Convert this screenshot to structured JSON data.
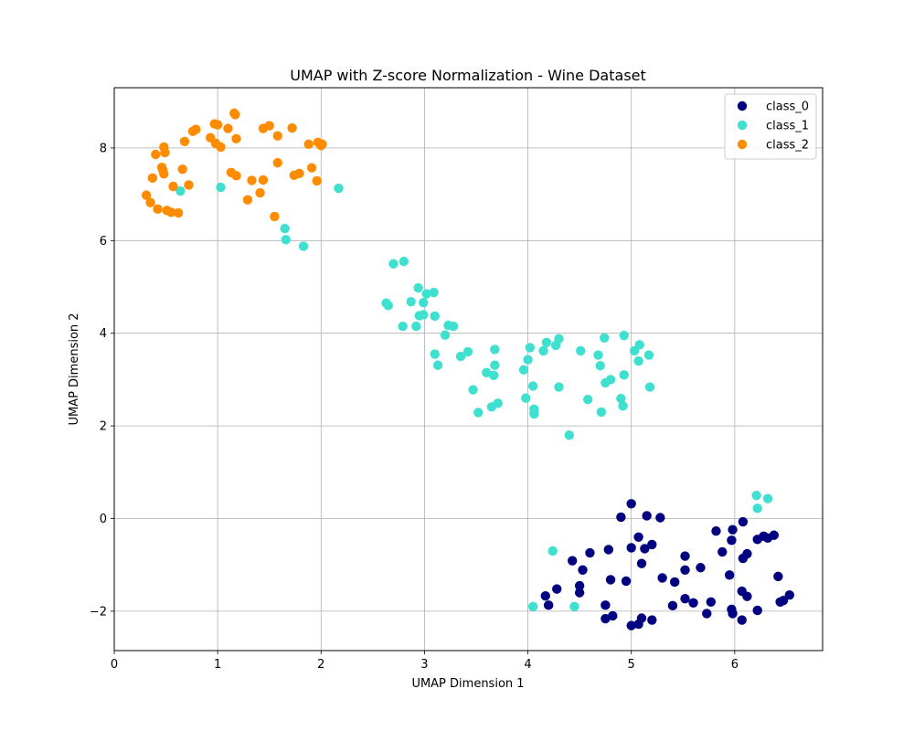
{
  "chart_data": {
    "type": "scatter",
    "title": "UMAP with Z-score Normalization - Wine Dataset",
    "xlabel": "UMAP Dimension 1",
    "ylabel": "UMAP Dimension 2",
    "xlim": [
      0,
      6.85
    ],
    "ylim": [
      -2.85,
      9.3
    ],
    "xticks": [
      0,
      1,
      2,
      3,
      4,
      5,
      6
    ],
    "yticks": [
      -2,
      0,
      2,
      4,
      6,
      8
    ],
    "grid": true,
    "legend_position": "top-right",
    "series": [
      {
        "name": "class_0",
        "color": "#000080",
        "points": [
          [
            5.0,
            0.32
          ],
          [
            4.9,
            0.03
          ],
          [
            5.15,
            0.06
          ],
          [
            5.28,
            0.02
          ],
          [
            6.08,
            -0.07
          ],
          [
            5.82,
            -0.27
          ],
          [
            5.98,
            -0.24
          ],
          [
            6.28,
            -0.38
          ],
          [
            6.38,
            -0.36
          ],
          [
            6.22,
            -0.45
          ],
          [
            6.32,
            -0.42
          ],
          [
            5.97,
            -0.47
          ],
          [
            5.07,
            -0.4
          ],
          [
            5.2,
            -0.56
          ],
          [
            5.13,
            -0.65
          ],
          [
            5.0,
            -0.63
          ],
          [
            4.78,
            -0.67
          ],
          [
            4.6,
            -0.74
          ],
          [
            5.88,
            -0.72
          ],
          [
            6.12,
            -0.76
          ],
          [
            6.08,
            -0.86
          ],
          [
            4.43,
            -0.91
          ],
          [
            5.52,
            -0.81
          ],
          [
            5.1,
            -0.97
          ],
          [
            4.53,
            -1.11
          ],
          [
            5.52,
            -1.11
          ],
          [
            5.67,
            -1.06
          ],
          [
            6.42,
            -1.25
          ],
          [
            5.95,
            -1.22
          ],
          [
            5.3,
            -1.28
          ],
          [
            4.8,
            -1.32
          ],
          [
            4.95,
            -1.35
          ],
          [
            5.42,
            -1.37
          ],
          [
            4.5,
            -1.45
          ],
          [
            4.28,
            -1.52
          ],
          [
            4.5,
            -1.6
          ],
          [
            6.07,
            -1.57
          ],
          [
            6.12,
            -1.68
          ],
          [
            6.53,
            -1.65
          ],
          [
            4.17,
            -1.67
          ],
          [
            5.52,
            -1.73
          ],
          [
            5.77,
            -1.8
          ],
          [
            6.47,
            -1.77
          ],
          [
            6.44,
            -1.8
          ],
          [
            5.6,
            -1.82
          ],
          [
            4.2,
            -1.87
          ],
          [
            4.75,
            -1.87
          ],
          [
            5.4,
            -1.88
          ],
          [
            5.97,
            -1.96
          ],
          [
            6.22,
            -1.98
          ],
          [
            5.73,
            -2.05
          ],
          [
            5.98,
            -2.05
          ],
          [
            4.82,
            -2.1
          ],
          [
            5.1,
            -2.15
          ],
          [
            4.75,
            -2.16
          ],
          [
            5.2,
            -2.19
          ],
          [
            6.07,
            -2.19
          ],
          [
            5.07,
            -2.28
          ],
          [
            5.0,
            -2.31
          ]
        ]
      },
      {
        "name": "class_1",
        "color": "#40E0D0",
        "points": [
          [
            0.64,
            7.07
          ],
          [
            1.03,
            7.15
          ],
          [
            2.17,
            7.13
          ],
          [
            1.65,
            6.26
          ],
          [
            1.66,
            6.02
          ],
          [
            1.83,
            5.88
          ],
          [
            2.7,
            5.5
          ],
          [
            2.8,
            5.55
          ],
          [
            2.94,
            4.98
          ],
          [
            3.02,
            4.85
          ],
          [
            3.09,
            4.88
          ],
          [
            2.63,
            4.65
          ],
          [
            2.65,
            4.6
          ],
          [
            2.87,
            4.68
          ],
          [
            2.99,
            4.66
          ],
          [
            2.95,
            4.38
          ],
          [
            2.99,
            4.4
          ],
          [
            3.1,
            4.37
          ],
          [
            2.79,
            4.15
          ],
          [
            2.92,
            4.15
          ],
          [
            3.23,
            4.17
          ],
          [
            3.28,
            4.15
          ],
          [
            3.2,
            3.96
          ],
          [
            4.3,
            3.88
          ],
          [
            4.18,
            3.8
          ],
          [
            4.27,
            3.74
          ],
          [
            4.02,
            3.69
          ],
          [
            3.68,
            3.65
          ],
          [
            4.15,
            3.62
          ],
          [
            4.51,
            3.62
          ],
          [
            4.74,
            3.9
          ],
          [
            4.93,
            3.95
          ],
          [
            5.08,
            3.75
          ],
          [
            5.03,
            3.62
          ],
          [
            5.17,
            3.53
          ],
          [
            4.68,
            3.53
          ],
          [
            3.42,
            3.6
          ],
          [
            3.1,
            3.55
          ],
          [
            3.35,
            3.5
          ],
          [
            4.0,
            3.43
          ],
          [
            5.07,
            3.4
          ],
          [
            3.13,
            3.31
          ],
          [
            3.68,
            3.31
          ],
          [
            4.7,
            3.3
          ],
          [
            3.6,
            3.15
          ],
          [
            3.96,
            3.21
          ],
          [
            3.67,
            3.09
          ],
          [
            4.93,
            3.1
          ],
          [
            4.8,
            3.0
          ],
          [
            4.75,
            2.93
          ],
          [
            4.05,
            2.86
          ],
          [
            4.3,
            2.84
          ],
          [
            5.18,
            2.84
          ],
          [
            3.47,
            2.78
          ],
          [
            3.98,
            2.6
          ],
          [
            4.58,
            2.57
          ],
          [
            4.9,
            2.59
          ],
          [
            3.71,
            2.49
          ],
          [
            4.92,
            2.43
          ],
          [
            3.65,
            2.41
          ],
          [
            4.06,
            2.36
          ],
          [
            4.06,
            2.26
          ],
          [
            4.71,
            2.3
          ],
          [
            3.52,
            2.29
          ],
          [
            4.4,
            1.8
          ],
          [
            6.21,
            0.5
          ],
          [
            6.32,
            0.43
          ],
          [
            6.22,
            0.22
          ],
          [
            4.24,
            -0.7
          ],
          [
            4.05,
            -1.9
          ],
          [
            4.45,
            -1.9
          ]
        ]
      },
      {
        "name": "class_2",
        "color": "#FF8C00",
        "points": [
          [
            1.16,
            8.75
          ],
          [
            1.17,
            8.72
          ],
          [
            0.97,
            8.52
          ],
          [
            1.0,
            8.5
          ],
          [
            1.5,
            8.48
          ],
          [
            1.44,
            8.42
          ],
          [
            1.1,
            8.42
          ],
          [
            1.72,
            8.43
          ],
          [
            0.79,
            8.4
          ],
          [
            0.76,
            8.36
          ],
          [
            0.93,
            8.22
          ],
          [
            1.18,
            8.2
          ],
          [
            1.58,
            8.26
          ],
          [
            0.68,
            8.14
          ],
          [
            0.98,
            8.1
          ],
          [
            1.03,
            8.02
          ],
          [
            1.88,
            8.08
          ],
          [
            1.97,
            8.12
          ],
          [
            2.0,
            8.05
          ],
          [
            2.01,
            8.08
          ],
          [
            0.48,
            8.02
          ],
          [
            0.49,
            7.9
          ],
          [
            0.4,
            7.86
          ],
          [
            1.58,
            7.68
          ],
          [
            0.46,
            7.58
          ],
          [
            0.47,
            7.52
          ],
          [
            0.66,
            7.54
          ],
          [
            1.91,
            7.57
          ],
          [
            1.13,
            7.47
          ],
          [
            1.18,
            7.4
          ],
          [
            1.79,
            7.45
          ],
          [
            1.74,
            7.41
          ],
          [
            0.48,
            7.44
          ],
          [
            0.37,
            7.35
          ],
          [
            1.33,
            7.3
          ],
          [
            1.44,
            7.31
          ],
          [
            1.96,
            7.29
          ],
          [
            0.57,
            7.17
          ],
          [
            0.72,
            7.2
          ],
          [
            1.41,
            7.03
          ],
          [
            0.31,
            6.98
          ],
          [
            1.29,
            6.88
          ],
          [
            0.35,
            6.82
          ],
          [
            0.42,
            6.68
          ],
          [
            0.51,
            6.65
          ],
          [
            0.55,
            6.61
          ],
          [
            0.62,
            6.6
          ],
          [
            1.55,
            6.52
          ]
        ]
      }
    ]
  }
}
